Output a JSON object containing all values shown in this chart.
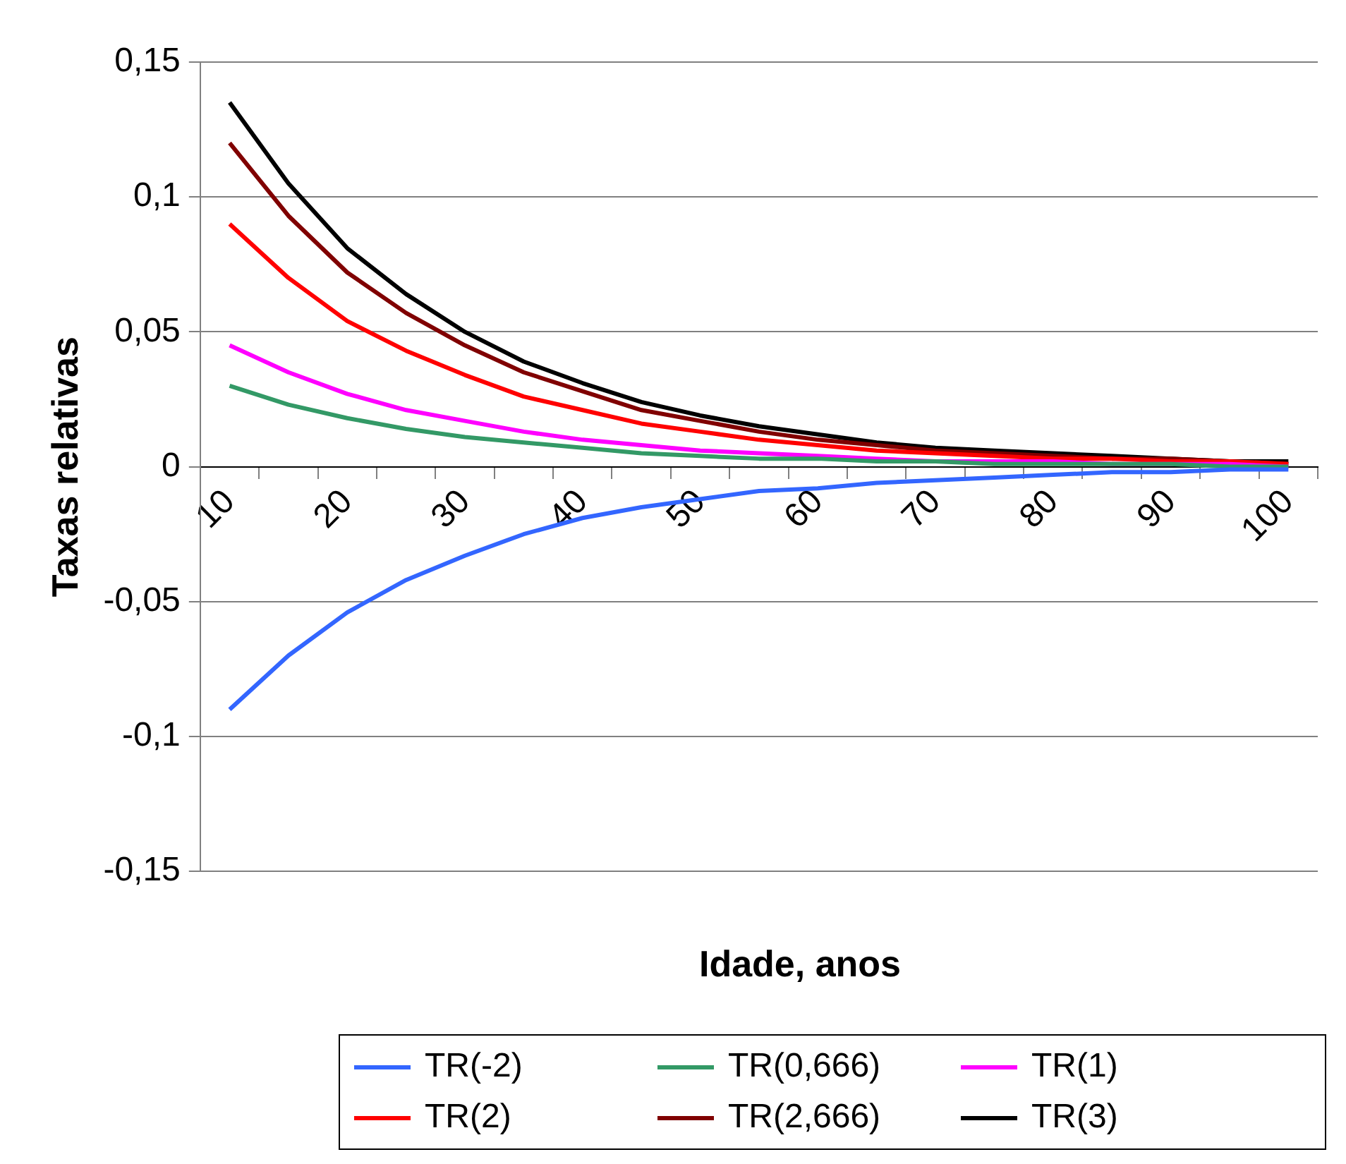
{
  "chart_data": {
    "type": "line",
    "xlabel": "Idade, anos",
    "ylabel": "Taxas relativas",
    "categories": [
      "10",
      null,
      "20",
      null,
      "30",
      null,
      "40",
      null,
      "50",
      null,
      "60",
      null,
      "70",
      null,
      "80",
      null,
      "90",
      null,
      "100"
    ],
    "series": [
      {
        "name": "TR(-2)",
        "color": "#3366ff",
        "values": [
          -0.09,
          -0.07,
          -0.054,
          -0.042,
          -0.033,
          -0.025,
          -0.019,
          -0.015,
          -0.012,
          -0.009,
          -0.008,
          -0.006,
          -0.005,
          -0.004,
          -0.003,
          -0.002,
          -0.002,
          -0.001,
          -0.001
        ]
      },
      {
        "name": "TR(0,666)",
        "color": "#339966",
        "values": [
          0.03,
          0.023,
          0.018,
          0.014,
          0.011,
          0.009,
          0.007,
          0.005,
          0.004,
          0.003,
          0.003,
          0.002,
          0.002,
          0.001,
          0.001,
          0.001,
          0.001,
          0,
          0
        ]
      },
      {
        "name": "TR(1)",
        "color": "#ff00ff",
        "values": [
          0.045,
          0.035,
          0.027,
          0.021,
          0.017,
          0.013,
          0.01,
          0.008,
          0.006,
          0.005,
          0.004,
          0.003,
          0.002,
          0.002,
          0.002,
          0.001,
          0.001,
          0.001,
          0
        ]
      },
      {
        "name": "TR(2)",
        "color": "#ff0000",
        "values": [
          0.09,
          0.07,
          0.054,
          0.043,
          0.034,
          0.026,
          0.021,
          0.016,
          0.013,
          0.01,
          0.008,
          0.006,
          0.005,
          0.004,
          0.003,
          0.003,
          0.002,
          0.002,
          0.001
        ]
      },
      {
        "name": "TR(2,666)",
        "color": "#800000",
        "values": [
          0.12,
          0.093,
          0.072,
          0.057,
          0.045,
          0.035,
          0.028,
          0.021,
          0.017,
          0.013,
          0.01,
          0.008,
          0.006,
          0.005,
          0.004,
          0.003,
          0.003,
          0.002,
          0.001
        ]
      },
      {
        "name": "TR(3)",
        "color": "#000000",
        "values": [
          0.135,
          0.105,
          0.081,
          0.064,
          0.05,
          0.039,
          0.031,
          0.024,
          0.019,
          0.015,
          0.012,
          0.009,
          0.007,
          0.006,
          0.005,
          0.004,
          0.003,
          0.002,
          0.002
        ]
      }
    ],
    "ylim": [
      -0.15,
      0.15
    ],
    "yticks": [
      {
        "value": -0.15,
        "label": "-0,15"
      },
      {
        "value": -0.1,
        "label": "-0,1"
      },
      {
        "value": -0.05,
        "label": "-0,05"
      },
      0,
      {
        "value": 0.05,
        "label": "0,05"
      },
      {
        "value": 0.1,
        "label": "0,1"
      },
      {
        "value": 0.15,
        "label": "0,15"
      }
    ],
    "grid": "y",
    "legend": "bottom",
    "marker": "none",
    "line_style": "solid"
  }
}
